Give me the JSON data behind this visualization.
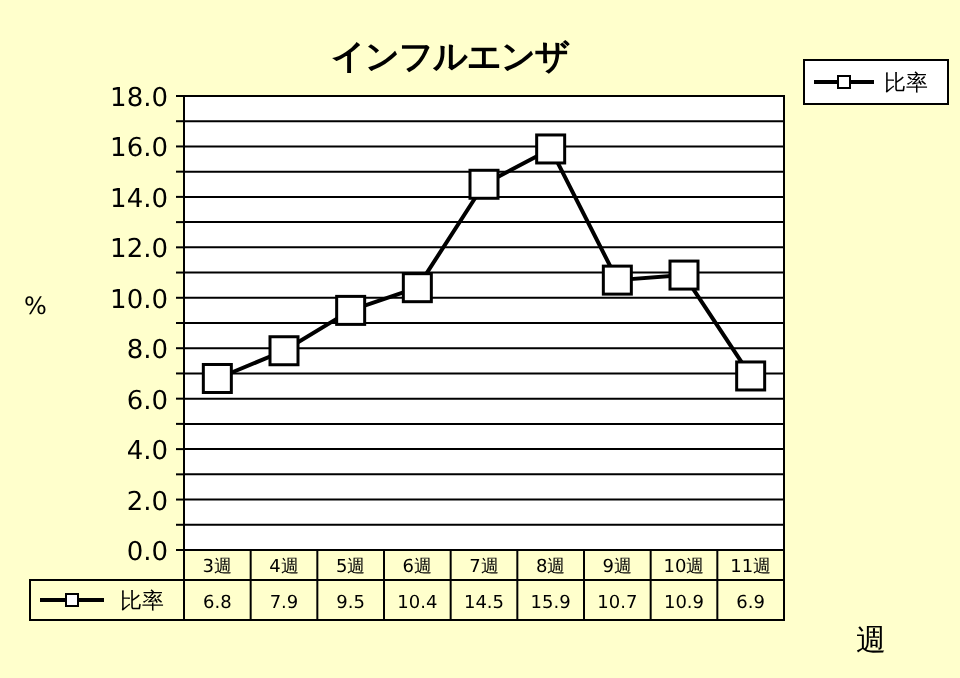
{
  "chart_data": {
    "type": "line",
    "title": "インフルエンザ",
    "xlabel": "週",
    "ylabel": "%",
    "categories": [
      "3週",
      "4週",
      "5週",
      "6週",
      "7週",
      "8週",
      "9週",
      "10週",
      "11週"
    ],
    "series": [
      {
        "name": "比率",
        "color": "#000000",
        "values": [
          6.8,
          7.9,
          9.5,
          10.4,
          14.5,
          15.9,
          10.7,
          10.9,
          6.9
        ]
      }
    ],
    "ylim": [
      0,
      18
    ],
    "yticks": [
      {
        "value": 0,
        "label": "0.0"
      },
      {
        "value": 1,
        "label": null
      },
      {
        "value": 2,
        "label": "2.0"
      },
      {
        "value": 3,
        "label": null
      },
      {
        "value": 4,
        "label": "4.0"
      },
      {
        "value": 5,
        "label": null
      },
      {
        "value": 6,
        "label": "6.0"
      },
      {
        "value": 7,
        "label": null
      },
      {
        "value": 8,
        "label": "8.0"
      },
      {
        "value": 9,
        "label": null
      },
      {
        "value": 10,
        "label": "10.0"
      },
      {
        "value": 11,
        "label": null
      },
      {
        "value": 12,
        "label": "12.0"
      },
      {
        "value": 13,
        "label": null
      },
      {
        "value": 14,
        "label": "14.0"
      },
      {
        "value": 15,
        "label": null
      },
      {
        "value": 16,
        "label": "16.0"
      },
      {
        "value": 17,
        "label": null
      },
      {
        "value": 18,
        "label": "18.0"
      }
    ],
    "grid": "y",
    "legend": "top right",
    "marker": "square",
    "line_style": "solid",
    "data_labels": true
  }
}
